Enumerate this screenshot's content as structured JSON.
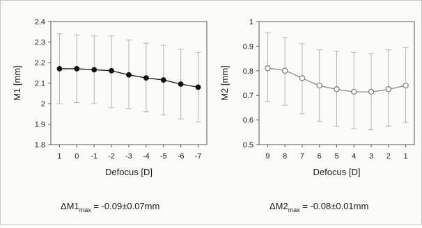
{
  "chart_data": [
    {
      "type": "line",
      "categories": [
        "1",
        "0",
        "-1",
        "-2",
        "-3",
        "-4",
        "-5",
        "-6",
        "-7"
      ],
      "series": [
        {
          "values": [
            2.17,
            2.17,
            2.165,
            2.16,
            2.14,
            2.125,
            2.115,
            2.095,
            2.08
          ],
          "error_low": [
            2.0,
            2.005,
            2.0,
            1.98,
            1.975,
            1.96,
            1.945,
            1.925,
            1.91
          ],
          "error_high": [
            2.34,
            2.335,
            2.33,
            2.33,
            2.31,
            2.295,
            2.285,
            2.265,
            2.25
          ],
          "marker": "filled-circle",
          "color": "#111111"
        }
      ],
      "xlabel": "Defocus [D]",
      "ylabel": "M1 [mm]",
      "ylim": [
        1.8,
        2.4
      ],
      "yticks": [
        "1.8",
        "1.9",
        "2",
        "2.1",
        "2.2",
        "2.3",
        "2.4"
      ],
      "grid": false,
      "annotation": {
        "prefix": "ΔM1",
        "subscript": "max",
        "value": " = -0.09±0.07mm"
      }
    },
    {
      "type": "line",
      "categories": [
        "9",
        "8",
        "7",
        "6",
        "5",
        "4",
        "3",
        "2",
        "1"
      ],
      "series": [
        {
          "values": [
            0.81,
            0.8,
            0.77,
            0.74,
            0.725,
            0.715,
            0.715,
            0.725,
            0.74
          ],
          "error_low": [
            0.675,
            0.66,
            0.625,
            0.595,
            0.575,
            0.565,
            0.56,
            0.575,
            0.59
          ],
          "error_high": [
            0.955,
            0.935,
            0.91,
            0.885,
            0.88,
            0.875,
            0.87,
            0.885,
            0.895
          ],
          "marker": "open-circle",
          "color": "#888888"
        }
      ],
      "xlabel": "Defocus [D]",
      "ylabel": "M2 [mm]",
      "ylim": [
        0.5,
        1.0
      ],
      "yticks": [
        "0.5",
        "0.6",
        "0.7",
        "0.8",
        "0.9",
        "1"
      ],
      "grid": false,
      "annotation": {
        "prefix": "ΔM2",
        "subscript": "max",
        "value": " = -0.08±0.01mm"
      }
    }
  ]
}
